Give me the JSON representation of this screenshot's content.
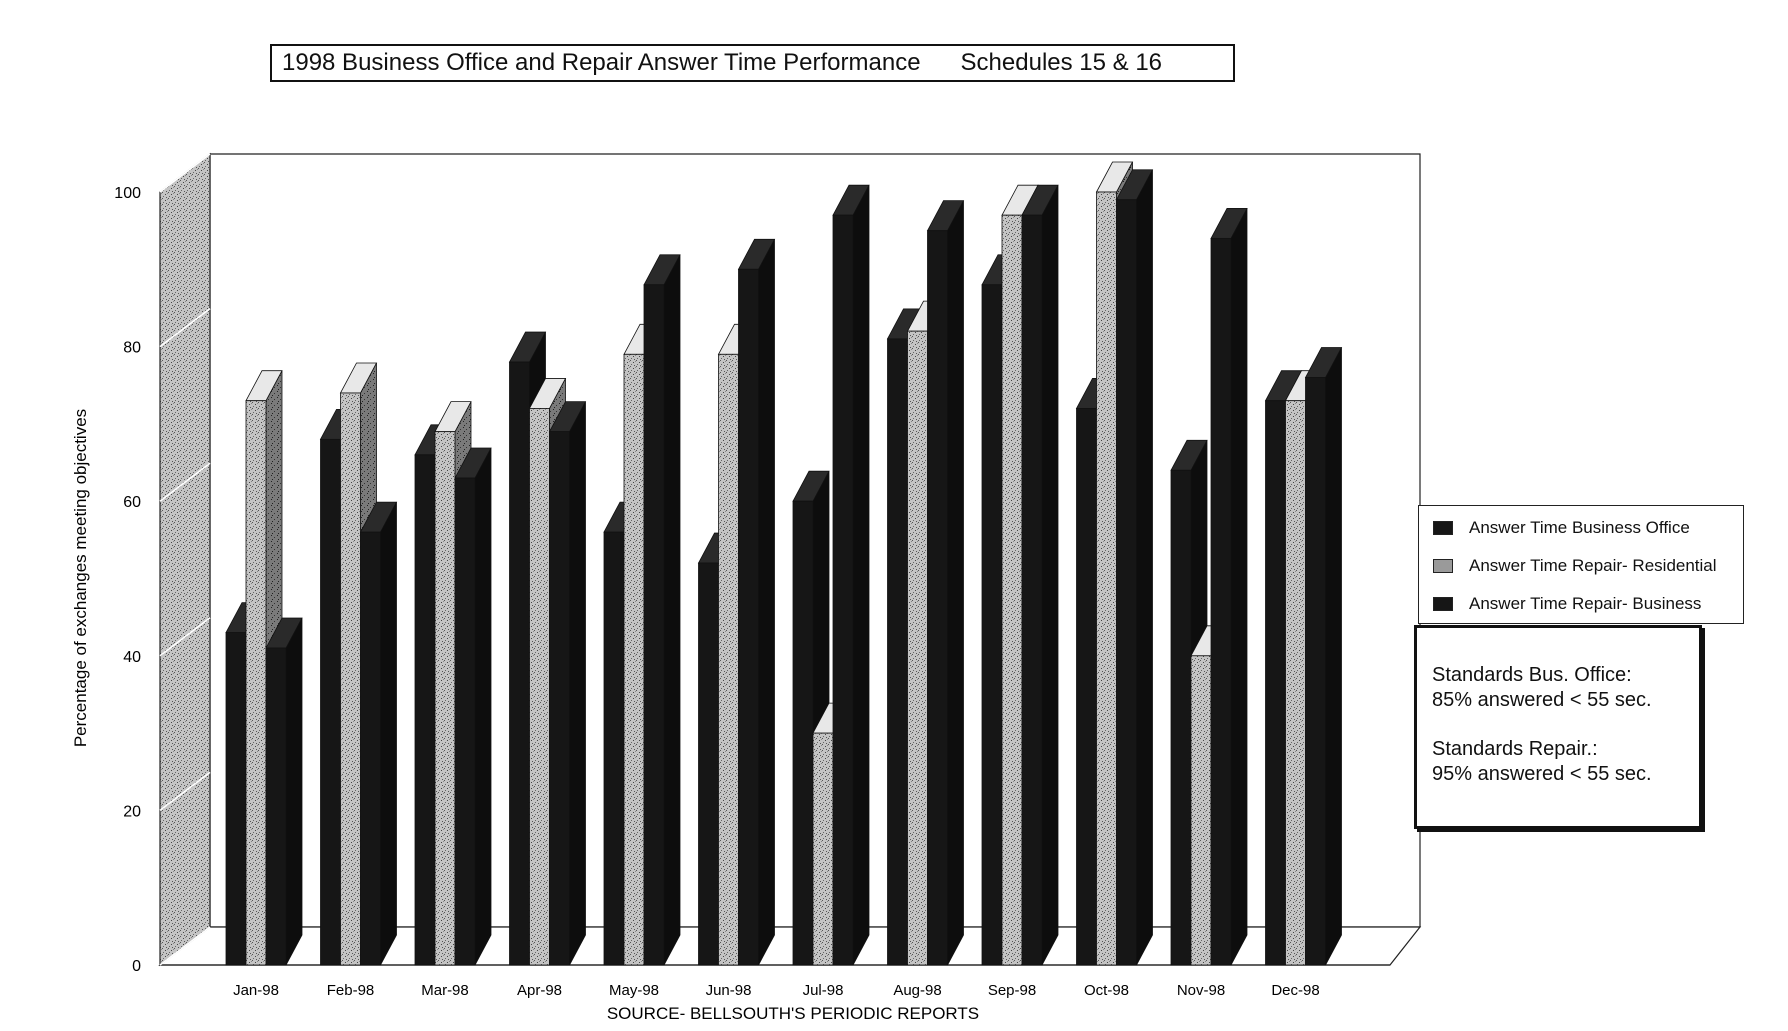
{
  "title": {
    "main": "1998  Business Office and Repair Answer Time Performance",
    "schedules": "Schedules 15 & 16"
  },
  "legend": [
    {
      "label": "Answer Time Business Office",
      "pattern": "solid-dark"
    },
    {
      "label": "Answer Time Repair- Residential",
      "pattern": "stipple-light"
    },
    {
      "label": "Answer Time Repair- Business",
      "pattern": "solid-dark"
    }
  ],
  "standards": {
    "bus_office_heading": "Standards Bus. Office:",
    "bus_office_text": "85% answered < 55 sec.",
    "repair_heading": "Standards Repair.:",
    "repair_text": "95% answered < 55 sec."
  },
  "source": "SOURCE-  BELLSOUTH'S PERIODIC REPORTS",
  "colors": {
    "dark": "#161616",
    "stipple": "#9a9a9a",
    "paper": "#ffffff"
  },
  "chart_data": {
    "type": "bar",
    "three_d": true,
    "ylabel": "Percentage of exchanges meeting objectives",
    "xlabel": "SOURCE-  BELLSOUTH'S PERIODIC REPORTS",
    "ylim": [
      0,
      100
    ],
    "yticks": [
      0,
      20,
      40,
      60,
      80,
      100
    ],
    "categories": [
      "Jan-98",
      "Feb-98",
      "Mar-98",
      "Apr-98",
      "May-98",
      "Jun-98",
      "Jul-98",
      "Aug-98",
      "Sep-98",
      "Oct-98",
      "Nov-98",
      "Dec-98"
    ],
    "series": [
      {
        "name": "Answer Time Business Office",
        "values": [
          43,
          68,
          66,
          78,
          56,
          52,
          60,
          81,
          88,
          72,
          64,
          73
        ]
      },
      {
        "name": "Answer Time Repair- Residential",
        "values": [
          73,
          74,
          69,
          72,
          79,
          79,
          30,
          82,
          97,
          100,
          40,
          73
        ]
      },
      {
        "name": "Answer Time Repair- Business",
        "values": [
          41,
          56,
          63,
          69,
          88,
          90,
          97,
          95,
          97,
          99,
          94,
          76
        ]
      }
    ],
    "legend_position": "right",
    "grid": false
  }
}
